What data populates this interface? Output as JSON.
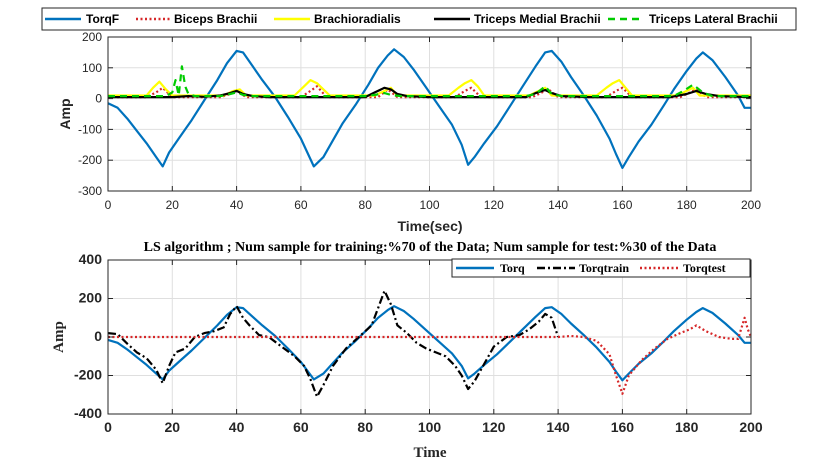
{
  "chart_data": [
    {
      "type": "line",
      "title": "",
      "xlabel": "Time(sec)",
      "ylabel": "Amp",
      "xlim": [
        0,
        200
      ],
      "ylim": [
        -300,
        200
      ],
      "xticks": [
        0,
        20,
        40,
        60,
        80,
        100,
        120,
        140,
        160,
        180,
        200
      ],
      "yticks": [
        -300,
        -200,
        -100,
        0,
        100,
        200
      ],
      "grid": true,
      "legend": "top, horizontal, outside plot",
      "series": [
        {
          "name": "TorqF",
          "color": "#0072BD",
          "style": "solid",
          "x": [
            0,
            3,
            6,
            9,
            12,
            15,
            17,
            19,
            22,
            26,
            30,
            34,
            37,
            40,
            42,
            45,
            48,
            52,
            56,
            60,
            64,
            67,
            70,
            73,
            77,
            81,
            84,
            87,
            89,
            92,
            95,
            99,
            103,
            107,
            110,
            112,
            114,
            117,
            121,
            125,
            129,
            133,
            136,
            138,
            141,
            144,
            148,
            152,
            156,
            158,
            160,
            162,
            165,
            169,
            173,
            176,
            180,
            183,
            185,
            188,
            192,
            196,
            198,
            200
          ],
          "values": [
            -15,
            -30,
            -65,
            -105,
            -145,
            -190,
            -220,
            -175,
            -130,
            -70,
            -5,
            60,
            115,
            155,
            150,
            105,
            60,
            5,
            -60,
            -130,
            -220,
            -190,
            -135,
            -80,
            -20,
            45,
            100,
            140,
            160,
            135,
            95,
            35,
            -25,
            -85,
            -150,
            -215,
            -190,
            -145,
            -90,
            -25,
            40,
            105,
            150,
            155,
            120,
            70,
            10,
            -55,
            -130,
            -180,
            -225,
            -190,
            -140,
            -85,
            -20,
            30,
            90,
            130,
            150,
            125,
            70,
            10,
            -30,
            -30
          ]
        },
        {
          "name": "Biceps Brachii",
          "color": "#D62728",
          "style": "dotted",
          "x": [
            0,
            12,
            15,
            17,
            20,
            35,
            38,
            40,
            43,
            60,
            63,
            65,
            68,
            84,
            87,
            90,
            108,
            111,
            113,
            116,
            132,
            135,
            137,
            140,
            155,
            158,
            160,
            163,
            178,
            181,
            183,
            186,
            200
          ],
          "values": [
            5,
            5,
            20,
            35,
            5,
            5,
            15,
            25,
            5,
            5,
            25,
            40,
            5,
            5,
            30,
            5,
            5,
            25,
            35,
            5,
            5,
            20,
            30,
            5,
            5,
            25,
            35,
            5,
            5,
            20,
            30,
            5,
            5
          ]
        },
        {
          "name": "Brachioradialis",
          "color": "#FFFF00",
          "style": "solid",
          "x": [
            0,
            12,
            14,
            16,
            18,
            20,
            36,
            39,
            41,
            43,
            58,
            61,
            63,
            65,
            67,
            69,
            83,
            86,
            88,
            90,
            106,
            109,
            111,
            113,
            115,
            117,
            131,
            134,
            136,
            138,
            152,
            155,
            157,
            159,
            161,
            163,
            177,
            180,
            182,
            184,
            200
          ],
          "values": [
            10,
            10,
            35,
            55,
            30,
            10,
            10,
            25,
            30,
            10,
            10,
            40,
            60,
            50,
            30,
            10,
            10,
            25,
            35,
            10,
            10,
            35,
            50,
            60,
            40,
            10,
            10,
            25,
            35,
            10,
            10,
            35,
            50,
            60,
            35,
            10,
            10,
            25,
            35,
            10,
            10
          ]
        },
        {
          "name": "Triceps Medial Brachii",
          "color": "#000000",
          "style": "solid",
          "x": [
            0,
            20,
            25,
            30,
            35,
            38,
            40,
            42,
            45,
            50,
            60,
            80,
            83,
            86,
            88,
            90,
            93,
            100,
            130,
            133,
            136,
            138,
            141,
            150,
            175,
            180,
            183,
            186,
            190,
            200
          ],
          "values": [
            5,
            5,
            8,
            6,
            10,
            18,
            25,
            15,
            8,
            5,
            5,
            5,
            20,
            35,
            30,
            15,
            8,
            5,
            5,
            18,
            28,
            18,
            8,
            5,
            5,
            15,
            25,
            15,
            8,
            5
          ]
        },
        {
          "name": "Triceps Lateral Brachii",
          "color": "#00CC00",
          "style": "dashed",
          "x": [
            0,
            18,
            20,
            21,
            22,
            23,
            24,
            25,
            27,
            35,
            38,
            40,
            42,
            45,
            80,
            83,
            86,
            88,
            91,
            130,
            133,
            136,
            138,
            141,
            176,
            179,
            182,
            185,
            188,
            198,
            200
          ],
          "values": [
            8,
            8,
            20,
            60,
            10,
            105,
            40,
            15,
            8,
            8,
            15,
            20,
            12,
            8,
            8,
            12,
            18,
            12,
            8,
            8,
            15,
            40,
            15,
            8,
            8,
            25,
            45,
            20,
            8,
            8,
            8
          ]
        }
      ]
    },
    {
      "type": "line",
      "title": "LS algorithm ;  Num sample for training:%70 of the Data;  Num sample for test:%30 of the Data",
      "xlabel": "Time",
      "ylabel": "Amp",
      "xlim": [
        0,
        200
      ],
      "ylim": [
        -400,
        400
      ],
      "xticks": [
        0,
        20,
        40,
        60,
        80,
        100,
        120,
        140,
        160,
        180,
        200
      ],
      "yticks": [
        -400,
        -200,
        0,
        200,
        400
      ],
      "grid": true,
      "legend": "top-right",
      "series": [
        {
          "name": "Torq",
          "color": "#0072BD",
          "style": "solid",
          "x": [
            0,
            3,
            6,
            9,
            12,
            15,
            17,
            19,
            22,
            26,
            30,
            34,
            37,
            40,
            42,
            45,
            48,
            52,
            56,
            60,
            64,
            67,
            70,
            73,
            77,
            81,
            84,
            87,
            89,
            92,
            95,
            99,
            103,
            107,
            110,
            112,
            114,
            117,
            121,
            125,
            129,
            133,
            136,
            138,
            141,
            144,
            148,
            152,
            156,
            158,
            160,
            162,
            165,
            169,
            173,
            176,
            180,
            183,
            185,
            188,
            192,
            196,
            198,
            200
          ],
          "values": [
            -15,
            -30,
            -65,
            -105,
            -145,
            -190,
            -220,
            -175,
            -130,
            -70,
            -5,
            60,
            115,
            155,
            150,
            105,
            60,
            5,
            -60,
            -130,
            -220,
            -190,
            -135,
            -80,
            -20,
            45,
            100,
            140,
            160,
            135,
            95,
            35,
            -25,
            -85,
            -150,
            -215,
            -190,
            -145,
            -90,
            -25,
            40,
            105,
            150,
            155,
            120,
            70,
            10,
            -55,
            -130,
            -180,
            -225,
            -190,
            -140,
            -85,
            -20,
            30,
            90,
            130,
            150,
            125,
            70,
            10,
            -30,
            -30
          ]
        },
        {
          "name": "Torqtrain",
          "color": "#000000",
          "style": "dashdot",
          "x": [
            0,
            3,
            6,
            9,
            12,
            15,
            17,
            19,
            21,
            24,
            27,
            30,
            33,
            36,
            38,
            40,
            42,
            44,
            47,
            50,
            54,
            58,
            61,
            63,
            65,
            67,
            70,
            74,
            78,
            82,
            84,
            86,
            88,
            90,
            93,
            96,
            99,
            102,
            105,
            108,
            110,
            112,
            114,
            117,
            120,
            124,
            128,
            131,
            134,
            136,
            138,
            140
          ],
          "values": [
            20,
            15,
            -35,
            -80,
            -110,
            -170,
            -240,
            -150,
            -80,
            -60,
            0,
            20,
            30,
            50,
            120,
            160,
            100,
            60,
            10,
            0,
            -50,
            -100,
            -150,
            -220,
            -310,
            -250,
            -150,
            -60,
            0,
            60,
            150,
            240,
            170,
            60,
            20,
            -30,
            -60,
            -80,
            -100,
            -150,
            -200,
            -270,
            -230,
            -140,
            -50,
            0,
            10,
            40,
            80,
            120,
            100,
            0
          ]
        },
        {
          "name": "Torqtest",
          "color": "#D62728",
          "style": "dotted",
          "x": [
            0,
            140,
            144,
            148,
            152,
            156,
            158,
            160,
            162,
            166,
            170,
            174,
            178,
            181,
            183,
            186,
            190,
            194,
            196,
            198,
            199,
            200
          ],
          "values": [
            0,
            0,
            5,
            0,
            -20,
            -90,
            -200,
            -295,
            -200,
            -120,
            -60,
            -10,
            20,
            40,
            60,
            30,
            0,
            -10,
            -10,
            100,
            40,
            0
          ]
        }
      ]
    }
  ]
}
